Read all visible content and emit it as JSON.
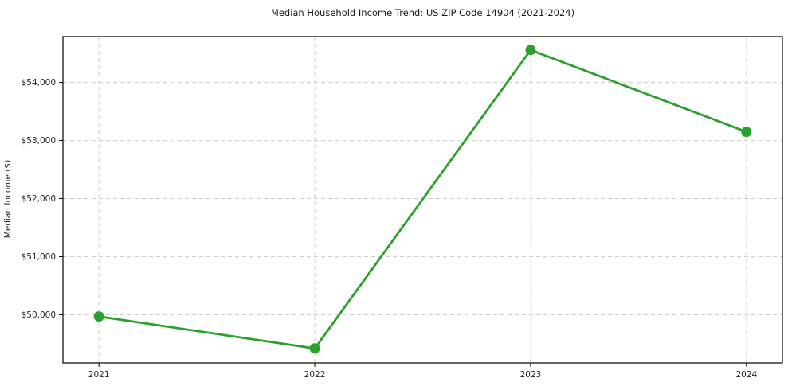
{
  "chart_data": {
    "type": "line",
    "title": "Median Household Income Trend: US ZIP Code 14904 (2021-2024)",
    "xlabel": "",
    "ylabel": "Median Income ($)",
    "categories": [
      "2021",
      "2022",
      "2023",
      "2024"
    ],
    "series": [
      {
        "name": "Median Household Income",
        "values": [
          49970,
          49420,
          54560,
          53150
        ]
      }
    ],
    "y_ticks": [
      50000,
      51000,
      52000,
      53000,
      54000
    ],
    "y_tick_labels": [
      "$50,000",
      "$51,000",
      "$52,000",
      "$53,000",
      "$54,000"
    ],
    "ylim": [
      49170,
      54790
    ],
    "grid": true,
    "grid_style": "dashed",
    "legend": "none",
    "colors": {
      "line": "#2ca02c",
      "marker": "#2ca02c",
      "grid": "#cccccc",
      "axis": "#000000",
      "text": "#262626"
    }
  }
}
